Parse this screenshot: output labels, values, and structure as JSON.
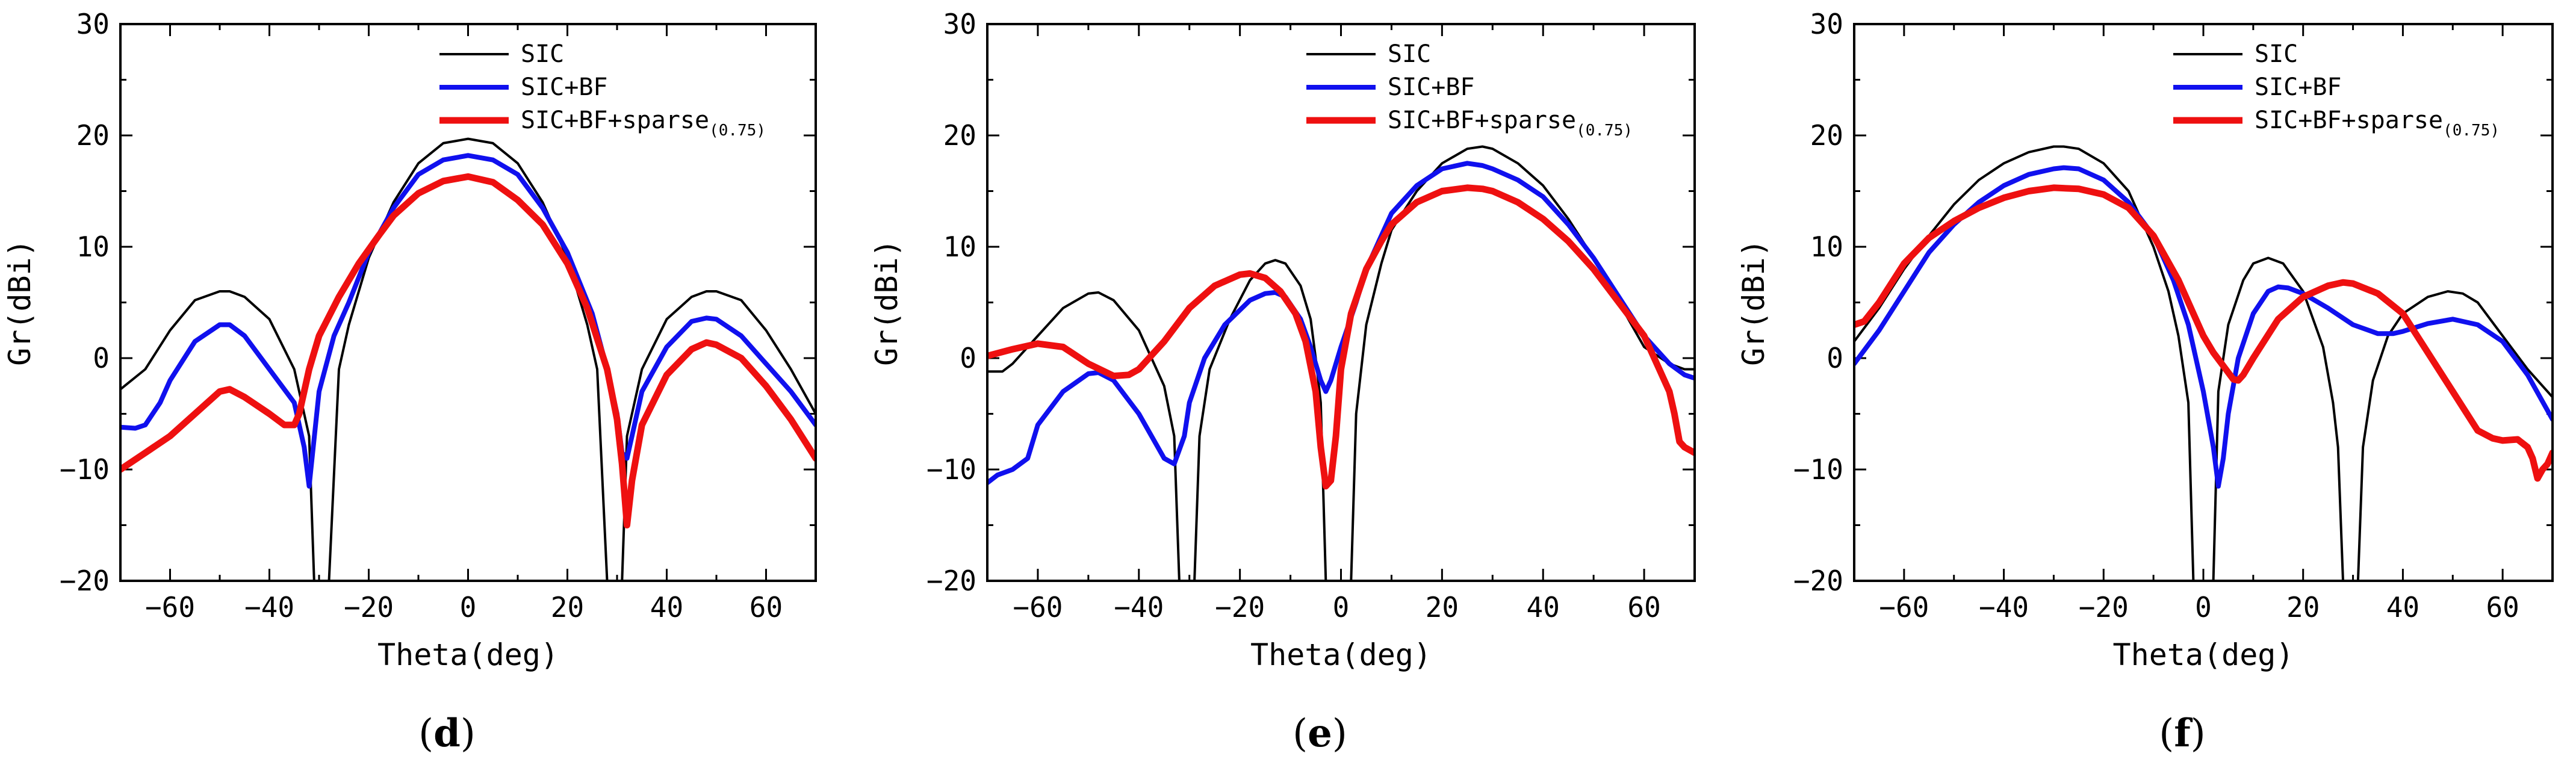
{
  "chart_data": [
    {
      "type": "line",
      "panel_label": "d",
      "xlabel": "Theta(deg)",
      "ylabel": "Gr(dBi)",
      "xlim": [
        -70,
        70
      ],
      "ylim": [
        -20,
        30
      ],
      "xticks": [
        -60,
        -40,
        -20,
        0,
        20,
        40,
        60
      ],
      "yticks": [
        -20,
        -10,
        0,
        10,
        20,
        30
      ],
      "legend": [
        {
          "name": "SIC",
          "color": "#000000"
        },
        {
          "name": "SIC+BF",
          "color": "#1010ee"
        },
        {
          "name": "SIC+BF+sparse",
          "subscript": "(0.75)",
          "color": "#ee1010"
        }
      ],
      "series": [
        {
          "name": "SIC",
          "color": "#000000",
          "x": [
            -70,
            -65,
            -60,
            -55,
            -50,
            -48,
            -45,
            -40,
            -35,
            -32,
            -31,
            -30,
            -29,
            -28,
            -26,
            -24,
            -20,
            -15,
            -10,
            -5,
            0,
            5,
            10,
            15,
            20,
            24,
            26,
            28,
            29,
            30,
            31,
            32,
            35,
            40,
            45,
            48,
            50,
            55,
            60,
            65,
            70
          ],
          "y": [
            -2.8,
            -1,
            2.5,
            5.2,
            6,
            6,
            5.5,
            3.5,
            -1,
            -7,
            -20,
            -20,
            -20,
            -20,
            -1,
            3,
            9,
            14,
            17.5,
            19.3,
            19.7,
            19.3,
            17.5,
            14,
            9,
            3,
            -1,
            -20,
            -20,
            -20,
            -20,
            -7,
            -1,
            3.5,
            5.5,
            6,
            6,
            5.2,
            2.5,
            -1,
            -5
          ]
        },
        {
          "name": "SIC+BF",
          "color": "#1010ee",
          "x": [
            -70,
            -67,
            -65,
            -62,
            -60,
            -55,
            -50,
            -48,
            -45,
            -40,
            -35,
            -33,
            -32,
            -30,
            -27,
            -24,
            -20,
            -15,
            -10,
            -5,
            0,
            5,
            10,
            15,
            20,
            25,
            28,
            30,
            31,
            32,
            33,
            35,
            40,
            45,
            48,
            50,
            55,
            60,
            65,
            70
          ],
          "y": [
            -6.2,
            -6.3,
            -6,
            -4,
            -2,
            1.5,
            3,
            3,
            2,
            -1,
            -4,
            -8,
            -11.5,
            -3,
            2,
            5,
            9.5,
            13.5,
            16.5,
            17.8,
            18.2,
            17.8,
            16.5,
            13.5,
            9.5,
            4,
            -1,
            -5,
            -8.5,
            -9,
            -7,
            -3,
            1,
            3.3,
            3.6,
            3.5,
            2,
            -0.5,
            -3,
            -6
          ]
        },
        {
          "name": "SIC+BF+sparse",
          "color": "#ee1010",
          "x": [
            -70,
            -65,
            -60,
            -55,
            -50,
            -48,
            -45,
            -40,
            -37,
            -35,
            -34,
            -32,
            -30,
            -26,
            -22,
            -18,
            -15,
            -10,
            -5,
            0,
            5,
            10,
            15,
            20,
            24,
            28,
            30,
            31,
            32,
            33,
            35,
            40,
            45,
            48,
            50,
            55,
            60,
            65,
            70
          ],
          "y": [
            -10,
            -8.5,
            -7,
            -5,
            -3,
            -2.8,
            -3.5,
            -5,
            -6,
            -6,
            -5,
            -1,
            2,
            5.5,
            8.5,
            11,
            12.8,
            14.8,
            15.9,
            16.3,
            15.8,
            14.2,
            12,
            8.5,
            4.5,
            -1,
            -5.5,
            -9.5,
            -15,
            -11,
            -6,
            -1.5,
            0.8,
            1.4,
            1.2,
            0,
            -2.5,
            -5.5,
            -9
          ]
        }
      ]
    },
    {
      "type": "line",
      "panel_label": "e",
      "xlabel": "Theta(deg)",
      "ylabel": "Gr(dBi)",
      "xlim": [
        -70,
        70
      ],
      "ylim": [
        -20,
        30
      ],
      "xticks": [
        -60,
        -40,
        -20,
        0,
        20,
        40,
        60
      ],
      "yticks": [
        -20,
        -10,
        0,
        10,
        20,
        30
      ],
      "legend": [
        {
          "name": "SIC",
          "color": "#000000"
        },
        {
          "name": "SIC+BF",
          "color": "#1010ee"
        },
        {
          "name": "SIC+BF+sparse",
          "subscript": "(0.75)",
          "color": "#ee1010"
        }
      ],
      "series": [
        {
          "name": "SIC",
          "color": "#000000",
          "x": [
            -70,
            -67,
            -65,
            -60,
            -55,
            -50,
            -48,
            -45,
            -40,
            -35,
            -33,
            -32,
            -31,
            -30,
            -29,
            -28,
            -26,
            -22,
            -18,
            -15,
            -13,
            -11,
            -8,
            -6,
            -5,
            -4,
            -3,
            -2,
            -1,
            0,
            1,
            2,
            3,
            5,
            8,
            10,
            15,
            20,
            25,
            28,
            30,
            35,
            40,
            45,
            50,
            55,
            60,
            65,
            68,
            70
          ],
          "y": [
            -1.2,
            -1.2,
            -0.5,
            2,
            4.5,
            5.8,
            5.9,
            5.2,
            2.5,
            -2.5,
            -7,
            -20,
            -20,
            -20,
            -20,
            -7,
            -1,
            3.5,
            7,
            8.5,
            8.8,
            8.5,
            6.5,
            3.5,
            0,
            -4,
            -20,
            -20,
            -20,
            -20,
            -20,
            -20,
            -5,
            3,
            8.5,
            11.5,
            15,
            17.5,
            18.8,
            19,
            18.8,
            17.5,
            15.5,
            12.5,
            9,
            5,
            1,
            -0.5,
            -1,
            -1
          ]
        },
        {
          "name": "SIC+BF",
          "color": "#1010ee",
          "x": [
            -70,
            -68,
            -65,
            -62,
            -60,
            -55,
            -50,
            -48,
            -45,
            -40,
            -35,
            -33,
            -31,
            -30,
            -27,
            -23,
            -18,
            -15,
            -13,
            -11,
            -8,
            -6,
            -4,
            -3,
            -2,
            0,
            3,
            5,
            8,
            10,
            15,
            20,
            25,
            28,
            30,
            35,
            40,
            45,
            50,
            55,
            60,
            65,
            68,
            70
          ],
          "y": [
            -11.2,
            -10.5,
            -10,
            -9,
            -6,
            -3,
            -1.4,
            -1.3,
            -2,
            -5,
            -9,
            -9.5,
            -7,
            -4,
            0,
            3,
            5.2,
            5.8,
            5.9,
            5.5,
            3.5,
            1,
            -2,
            -3,
            -2,
            1,
            5,
            8,
            11,
            13,
            15.5,
            17,
            17.5,
            17.3,
            17,
            16,
            14.5,
            12,
            9,
            5.5,
            2,
            -0.5,
            -1.5,
            -1.8
          ]
        },
        {
          "name": "SIC+BF+sparse",
          "color": "#ee1010",
          "x": [
            -70,
            -65,
            -60,
            -55,
            -50,
            -45,
            -42,
            -40,
            -35,
            -30,
            -25,
            -20,
            -18,
            -15,
            -12,
            -9,
            -7,
            -5,
            -4,
            -3,
            -2,
            -1,
            0,
            2,
            5,
            8,
            10,
            15,
            20,
            25,
            28,
            30,
            35,
            40,
            45,
            50,
            55,
            60,
            63,
            65,
            66,
            67,
            68,
            70
          ],
          "y": [
            0.2,
            0.8,
            1.3,
            1,
            -0.5,
            -1.6,
            -1.5,
            -1,
            1.5,
            4.5,
            6.5,
            7.5,
            7.6,
            7.2,
            6,
            4,
            1.5,
            -3,
            -8,
            -11.5,
            -11,
            -7,
            -1,
            4,
            8,
            10.5,
            12,
            14,
            15,
            15.3,
            15.2,
            15,
            14,
            12.5,
            10.5,
            8,
            5,
            2,
            -1,
            -3,
            -5,
            -7.5,
            -8,
            -8.5
          ]
        }
      ]
    },
    {
      "type": "line",
      "panel_label": "f",
      "xlabel": "Theta(deg)",
      "ylabel": "Gr(dBi)",
      "xlim": [
        -70,
        70
      ],
      "ylim": [
        -20,
        30
      ],
      "xticks": [
        -60,
        -40,
        -20,
        0,
        20,
        40,
        60
      ],
      "yticks": [
        -20,
        -10,
        0,
        10,
        20,
        30
      ],
      "legend": [
        {
          "name": "SIC",
          "color": "#000000"
        },
        {
          "name": "SIC+BF",
          "color": "#1010ee"
        },
        {
          "name": "SIC+BF+sparse",
          "subscript": "(0.75)",
          "color": "#ee1010"
        }
      ],
      "series": [
        {
          "name": "SIC",
          "color": "#000000",
          "x": [
            -70,
            -65,
            -60,
            -55,
            -50,
            -45,
            -40,
            -35,
            -30,
            -28,
            -25,
            -20,
            -15,
            -10,
            -7,
            -5,
            -3,
            -2,
            -1,
            0,
            1,
            2,
            3,
            5,
            8,
            10,
            13,
            16,
            20,
            24,
            26,
            27,
            28,
            29,
            30,
            31,
            32,
            34,
            37,
            40,
            45,
            49,
            52,
            55,
            60,
            65,
            70
          ],
          "y": [
            1.5,
            4.5,
            8,
            11,
            13.8,
            16,
            17.5,
            18.5,
            19,
            19,
            18.8,
            17.5,
            15,
            10,
            6,
            2,
            -4,
            -20,
            -20,
            -20,
            -20,
            -20,
            -3,
            3,
            7,
            8.5,
            9,
            8.5,
            6,
            1,
            -4,
            -8,
            -20,
            -20,
            -20,
            -20,
            -8,
            -2,
            2,
            4,
            5.5,
            6,
            5.8,
            5,
            2,
            -1,
            -3.5
          ]
        },
        {
          "name": "SIC+BF",
          "color": "#1010ee",
          "x": [
            -70,
            -65,
            -60,
            -55,
            -50,
            -45,
            -40,
            -35,
            -30,
            -28,
            -25,
            -20,
            -15,
            -10,
            -6,
            -3,
            0,
            2,
            3,
            4,
            5,
            7,
            10,
            13,
            15,
            17,
            20,
            25,
            30,
            35,
            38,
            40,
            45,
            50,
            55,
            60,
            65,
            70
          ],
          "y": [
            -0.5,
            2.5,
            6,
            9.5,
            12,
            14,
            15.5,
            16.5,
            17,
            17.1,
            17,
            16,
            14,
            11,
            7,
            3,
            -3,
            -8,
            -11.5,
            -9,
            -5,
            0,
            4,
            6,
            6.4,
            6.3,
            5.8,
            4.5,
            3,
            2.2,
            2.2,
            2.4,
            3.1,
            3.5,
            3,
            1.5,
            -1.5,
            -5.5
          ]
        },
        {
          "name": "SIC+BF+sparse",
          "color": "#ee1010",
          "x": [
            -70,
            -68,
            -65,
            -60,
            -55,
            -50,
            -45,
            -40,
            -35,
            -30,
            -25,
            -20,
            -15,
            -10,
            -5,
            -2,
            0,
            2,
            5,
            6,
            7,
            8,
            10,
            15,
            20,
            25,
            28,
            30,
            35,
            40,
            45,
            50,
            55,
            58,
            60,
            63,
            65,
            66,
            67,
            68,
            69,
            70
          ],
          "y": [
            3,
            3.3,
            5,
            8.5,
            10.8,
            12.3,
            13.5,
            14.4,
            15,
            15.3,
            15.2,
            14.7,
            13.5,
            11,
            7,
            4,
            2,
            0.5,
            -1.3,
            -1.9,
            -2,
            -1.5,
            0,
            3.5,
            5.5,
            6.5,
            6.8,
            6.7,
            5.8,
            4,
            0.5,
            -3,
            -6.5,
            -7.2,
            -7.4,
            -7.3,
            -8,
            -9,
            -10.8,
            -10,
            -9.5,
            -8.5
          ]
        }
      ]
    }
  ]
}
